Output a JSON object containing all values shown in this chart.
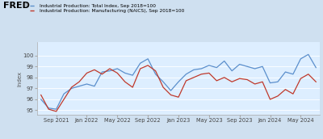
{
  "legend1": "Industrial Production: Total Index, Sep 2018=100",
  "legend2": "Industrial Production: Manufacturing (NAICS), Sep 2018=100",
  "ylabel": "Index",
  "background_color": "#cfe0f0",
  "plot_bg": "#ddeeff",
  "line1_color": "#5b8fcc",
  "line2_color": "#c0392b",
  "ylim": [
    94.6,
    101.2
  ],
  "yticks": [
    95,
    96,
    97,
    98,
    99,
    100
  ],
  "xtick_labels": [
    "Sep 2021",
    "Jan 2022",
    "May 2022",
    "Sep 2022",
    "Jan 2023",
    "May 2023",
    "Sep 2023",
    "Jan 2024",
    "May 2024"
  ],
  "xtick_positions": [
    2,
    6,
    10,
    14,
    18,
    22,
    26,
    30,
    34
  ],
  "total_index": [
    96.0,
    95.2,
    95.1,
    96.5,
    97.0,
    97.2,
    97.4,
    97.2,
    98.5,
    98.6,
    98.8,
    98.4,
    98.2,
    99.3,
    99.7,
    98.3,
    97.6,
    96.8,
    97.6,
    98.3,
    98.7,
    98.8,
    99.1,
    98.9,
    99.5,
    98.6,
    99.2,
    99.0,
    98.8,
    99.0,
    97.5,
    97.6,
    98.5,
    98.3,
    99.7,
    100.1,
    98.9
  ],
  "mfg_index": [
    96.4,
    95.1,
    94.9,
    96.0,
    97.1,
    97.6,
    98.4,
    98.7,
    98.3,
    98.8,
    98.4,
    97.6,
    97.1,
    98.8,
    99.1,
    98.6,
    97.1,
    96.4,
    96.2,
    97.7,
    98.0,
    98.3,
    98.4,
    97.7,
    98.0,
    97.6,
    97.9,
    97.8,
    97.4,
    97.6,
    96.0,
    96.3,
    96.9,
    96.5,
    97.9,
    98.3,
    97.6
  ],
  "fred_text": "FRED",
  "fred_fontsize": 8,
  "legend_fontsize": 4.2,
  "ytick_fontsize": 5,
  "xtick_fontsize": 4.8,
  "ylabel_fontsize": 5
}
